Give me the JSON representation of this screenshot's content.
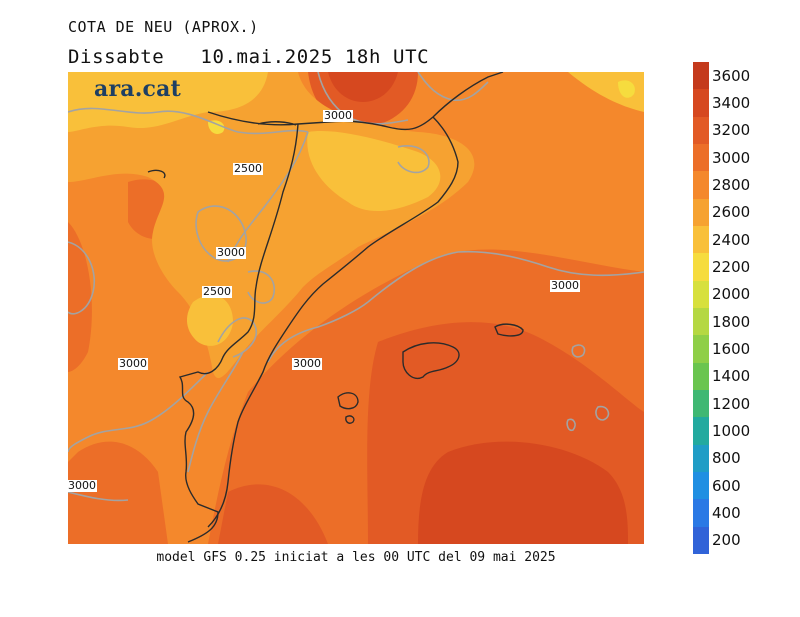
{
  "header": {
    "title": "COTA DE NEU (APROX.)",
    "subtitle": "Dissabte   10.mai.2025 18h UTC"
  },
  "logo": {
    "text": "ara.cat"
  },
  "footer": {
    "text": "model GFS 0.25 iniciat a les 00 UTC del 09 mai 2025"
  },
  "legend": {
    "unit": "",
    "levels": [
      {
        "value": "3600",
        "color": "#c43a1c"
      },
      {
        "value": "3400",
        "color": "#d6481f"
      },
      {
        "value": "3200",
        "color": "#e25a25"
      },
      {
        "value": "3000",
        "color": "#ec6e28"
      },
      {
        "value": "2800",
        "color": "#f4882c"
      },
      {
        "value": "2600",
        "color": "#f6a231"
      },
      {
        "value": "2400",
        "color": "#f9c03a"
      },
      {
        "value": "2200",
        "color": "#f6dc3e"
      },
      {
        "value": "2000",
        "color": "#d7e03d"
      },
      {
        "value": "1800",
        "color": "#b5d842"
      },
      {
        "value": "1600",
        "color": "#8fcf47"
      },
      {
        "value": "1400",
        "color": "#6ac54f"
      },
      {
        "value": "1200",
        "color": "#3fb873"
      },
      {
        "value": "1000",
        "color": "#22aa9f"
      },
      {
        "value": "800",
        "color": "#1f9dc6"
      },
      {
        "value": "600",
        "color": "#208fe2"
      },
      {
        "value": "400",
        "color": "#2a79e5"
      },
      {
        "value": "200",
        "color": "#3163d8"
      }
    ]
  },
  "contour_labels": [
    {
      "text": "3000"
    },
    {
      "text": "2500"
    },
    {
      "text": "3000"
    },
    {
      "text": "2500"
    },
    {
      "text": "3000"
    },
    {
      "text": "3000"
    },
    {
      "text": "3000"
    },
    {
      "text": "3000"
    }
  ]
}
